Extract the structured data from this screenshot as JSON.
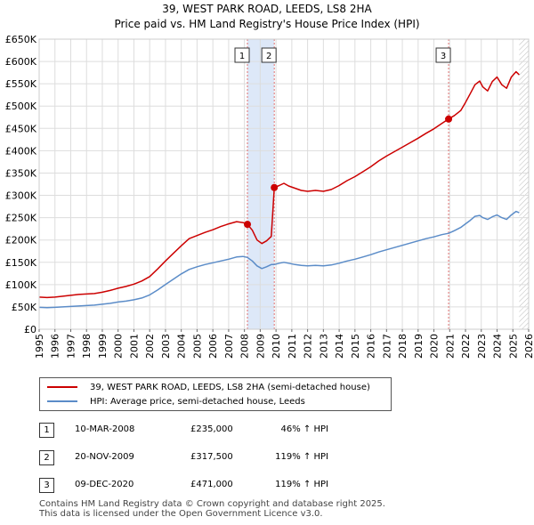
{
  "chart_data": {
    "type": "line",
    "title": "39, WEST PARK ROAD, LEEDS, LS8 2HA",
    "subtitle": "Price paid vs. HM Land Registry's House Price Index (HPI)",
    "y_ticks": [
      "£0",
      "£50K",
      "£100K",
      "£150K",
      "£200K",
      "£250K",
      "£300K",
      "£350K",
      "£400K",
      "£450K",
      "£500K",
      "£550K",
      "£600K",
      "£650K"
    ],
    "y_tick_values": [
      0,
      50000,
      100000,
      150000,
      200000,
      250000,
      300000,
      350000,
      400000,
      450000,
      500000,
      550000,
      600000,
      650000
    ],
    "x_ticks": [
      "1995",
      "1996",
      "1997",
      "1998",
      "1999",
      "2000",
      "2001",
      "2002",
      "2003",
      "2004",
      "2005",
      "2006",
      "2007",
      "2008",
      "2009",
      "2010",
      "2011",
      "2012",
      "2013",
      "2014",
      "2015",
      "2016",
      "2017",
      "2018",
      "2019",
      "2020",
      "2021",
      "2022",
      "2023",
      "2024",
      "2025",
      "2026"
    ],
    "xlim": [
      1995,
      2026
    ],
    "ylim": [
      0,
      650000
    ],
    "hatch_start": 2025.4,
    "colors": {
      "property": "#cc0000",
      "hpi": "#5b8cc8",
      "shade": "#dde8f8",
      "grid": "#dddddd"
    },
    "series": [
      {
        "name": "39, WEST PARK ROAD, LEEDS, LS8 2HA (semi-detached house)",
        "color": "#cc0000",
        "x": [
          1995.0,
          1995.5,
          1996.0,
          1996.5,
          1997.0,
          1997.5,
          1998.0,
          1998.5,
          1999.0,
          1999.5,
          2000.0,
          2000.5,
          2001.0,
          2001.5,
          2002.0,
          2002.5,
          2003.0,
          2003.5,
          2004.0,
          2004.5,
          2005.0,
          2005.5,
          2006.0,
          2006.5,
          2007.0,
          2007.5,
          2007.9,
          2008.19,
          2008.5,
          2008.8,
          2009.1,
          2009.4,
          2009.7,
          2009.89,
          2010.2,
          2010.5,
          2010.8,
          2011.2,
          2011.6,
          2012.0,
          2012.5,
          2013.0,
          2013.5,
          2014.0,
          2014.5,
          2015.0,
          2015.5,
          2016.0,
          2016.5,
          2017.0,
          2017.5,
          2018.0,
          2018.5,
          2019.0,
          2019.5,
          2020.0,
          2020.5,
          2020.93,
          2021.3,
          2021.7,
          2022.0,
          2022.3,
          2022.6,
          2022.9,
          2023.1,
          2023.4,
          2023.7,
          2024.0,
          2024.3,
          2024.6,
          2024.9,
          2025.2,
          2025.4
        ],
        "values": [
          72000,
          71000,
          72000,
          74000,
          76000,
          78000,
          79000,
          80000,
          83000,
          87000,
          92000,
          96000,
          101000,
          108000,
          118000,
          135000,
          153000,
          170000,
          187000,
          203000,
          210000,
          217000,
          223000,
          230000,
          236000,
          241000,
          239000,
          235000,
          222000,
          200000,
          192000,
          198000,
          208000,
          317500,
          322000,
          327000,
          321000,
          316000,
          311000,
          309000,
          311000,
          309000,
          313000,
          322000,
          333000,
          342000,
          353000,
          364000,
          377000,
          388000,
          398000,
          408000,
          418000,
          428000,
          439000,
          449000,
          461000,
          471000,
          479000,
          490000,
          508000,
          528000,
          548000,
          556000,
          543000,
          534000,
          555000,
          565000,
          548000,
          540000,
          565000,
          577000,
          570000
        ]
      },
      {
        "name": "HPI: Average price, semi-detached house, Leeds",
        "color": "#5b8cc8",
        "x": [
          1995.0,
          1995.5,
          1996.0,
          1996.5,
          1997.0,
          1997.5,
          1998.0,
          1998.5,
          1999.0,
          1999.5,
          2000.0,
          2000.5,
          2001.0,
          2001.5,
          2002.0,
          2002.5,
          2003.0,
          2003.5,
          2004.0,
          2004.5,
          2005.0,
          2005.5,
          2006.0,
          2006.5,
          2007.0,
          2007.5,
          2007.9,
          2008.19,
          2008.5,
          2008.8,
          2009.1,
          2009.4,
          2009.7,
          2009.89,
          2010.2,
          2010.5,
          2010.8,
          2011.2,
          2011.6,
          2012.0,
          2012.5,
          2013.0,
          2013.5,
          2014.0,
          2014.5,
          2015.0,
          2015.5,
          2016.0,
          2016.5,
          2017.0,
          2017.5,
          2018.0,
          2018.5,
          2019.0,
          2019.5,
          2020.0,
          2020.5,
          2020.93,
          2021.3,
          2021.7,
          2022.0,
          2022.3,
          2022.6,
          2022.9,
          2023.1,
          2023.4,
          2023.7,
          2024.0,
          2024.3,
          2024.6,
          2024.9,
          2025.2,
          2025.4
        ],
        "values": [
          49000,
          48500,
          49000,
          50000,
          51000,
          52000,
          53000,
          54000,
          56000,
          58000,
          61000,
          63000,
          66000,
          70000,
          77000,
          88000,
          100000,
          112000,
          124000,
          134000,
          140000,
          145000,
          149000,
          153000,
          157000,
          162000,
          163000,
          161000,
          153000,
          142000,
          136000,
          140000,
          145000,
          145000,
          148000,
          150000,
          148000,
          145000,
          143000,
          142000,
          143000,
          142000,
          144000,
          148000,
          153000,
          157000,
          162000,
          167000,
          173000,
          178000,
          183000,
          188000,
          193000,
          198000,
          203000,
          207000,
          212000,
          215000,
          221000,
          228000,
          236000,
          244000,
          253000,
          255000,
          250000,
          246000,
          252000,
          256000,
          250000,
          246000,
          256000,
          264000,
          261000
        ]
      }
    ],
    "sales": [
      {
        "label": "1",
        "x": 2008.19,
        "value": 235000
      },
      {
        "label": "2",
        "x": 2009.89,
        "value": 317500
      },
      {
        "label": "3",
        "x": 2020.93,
        "value": 471000
      }
    ]
  },
  "legend": {
    "property_label": "39, WEST PARK ROAD, LEEDS, LS8 2HA (semi-detached house)",
    "hpi_label": "HPI: Average price, semi-detached house, Leeds"
  },
  "transactions": [
    {
      "num": "1",
      "date": "10-MAR-2008",
      "price": "£235,000",
      "hpi": "46% ↑ HPI"
    },
    {
      "num": "2",
      "date": "20-NOV-2009",
      "price": "£317,500",
      "hpi": "119% ↑ HPI"
    },
    {
      "num": "3",
      "date": "09-DEC-2020",
      "price": "£471,000",
      "hpi": "119% ↑ HPI"
    }
  ],
  "footer": {
    "line1": "Contains HM Land Registry data © Crown copyright and database right 2025.",
    "line2": "This data is licensed under the Open Government Licence v3.0."
  }
}
